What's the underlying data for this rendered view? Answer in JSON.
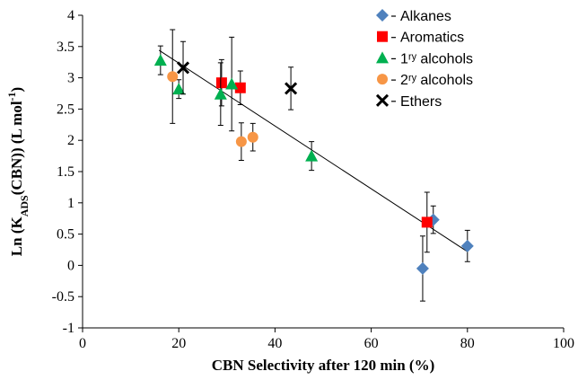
{
  "chart_data": {
    "type": "scatter",
    "x_label": "CBN Selectivity after 120 min (%)",
    "y_label": [
      {
        "text": "Ln (K"
      },
      {
        "text": "ADS",
        "shift": "sub"
      },
      {
        "text": "(CBN)) (L mol"
      },
      {
        "text": "-1",
        "shift": "super"
      },
      {
        "text": ")"
      }
    ],
    "xlim": [
      0,
      100
    ],
    "xticks": [
      0,
      20,
      40,
      60,
      80,
      100
    ],
    "ylim": [
      -1,
      4
    ],
    "yticks": [
      -1,
      -0.5,
      0,
      0.5,
      1,
      1.5,
      2,
      2.5,
      3,
      3.5,
      4
    ],
    "grid": false,
    "legend": "top-right",
    "series": [
      {
        "name": "Alkanes",
        "marker": "diamond",
        "color": "#4f81bd",
        "x": [
          70.7,
          72.9,
          80.0
        ],
        "values": [
          -0.05,
          0.73,
          0.31
        ],
        "errors": [
          0.52,
          0.22,
          0.25
        ]
      },
      {
        "name": "Aromatics",
        "marker": "square",
        "color": "#ff0000",
        "x": [
          28.9,
          32.8,
          71.6
        ],
        "values": [
          2.92,
          2.84,
          0.69
        ],
        "errors": [
          0.37,
          0.27,
          0.48
        ]
      },
      {
        "name": "1ʳʸ alcohols",
        "marker": "triangle",
        "color": "#00b050",
        "x": [
          16.2,
          20.0,
          28.7,
          31.0,
          47.6
        ],
        "values": [
          3.28,
          2.82,
          2.74,
          2.9,
          1.75
        ],
        "errors": [
          0.23,
          0.15,
          0.5,
          0.75,
          0.23
        ]
      },
      {
        "name": "2ʳʸ alcohols",
        "marker": "circle",
        "color": "#f79646",
        "x": [
          18.7,
          33.0,
          35.4
        ],
        "values": [
          3.02,
          1.98,
          2.05
        ],
        "errors": [
          0.75,
          0.3,
          0.22
        ]
      },
      {
        "name": "Ethers",
        "marker": "cross",
        "color": "#000000",
        "x": [
          20.9,
          43.3
        ],
        "values": [
          3.16,
          2.83
        ],
        "errors": [
          0.42,
          0.34
        ]
      }
    ],
    "trendline": {
      "x": [
        15.9,
        80.0
      ],
      "y": [
        3.44,
        0.22
      ],
      "color": "#000000"
    }
  }
}
